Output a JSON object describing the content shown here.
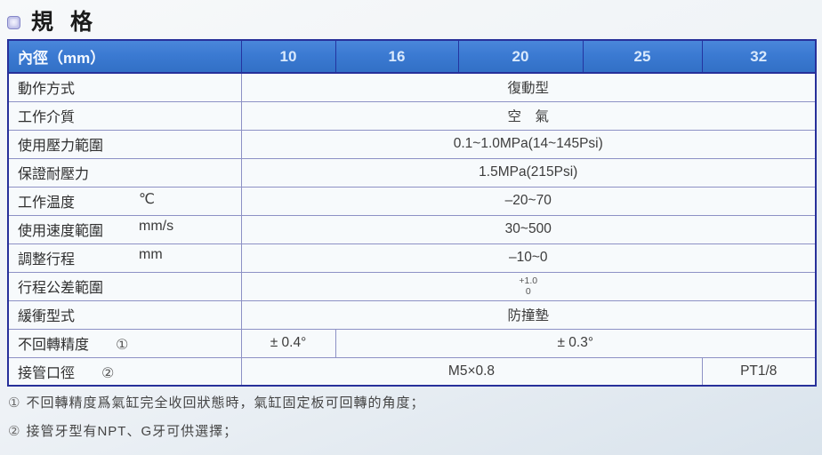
{
  "page": {
    "title": "規 格"
  },
  "table": {
    "header": {
      "label": "內徑（mm）",
      "columns": [
        "10",
        "16",
        "20",
        "25",
        "32"
      ]
    },
    "rows": [
      {
        "label": "動作方式",
        "cells": [
          {
            "text": "復動型",
            "span": 5
          }
        ]
      },
      {
        "label": "工作介質",
        "cells": [
          {
            "text": "空　氣",
            "span": 5
          }
        ]
      },
      {
        "label": "使用壓力範圍",
        "cells": [
          {
            "text": "0.1~1.0MPa(14~145Psi)",
            "span": 5
          }
        ]
      },
      {
        "label": "保證耐壓力",
        "cells": [
          {
            "text": "1.5MPa(215Psi)",
            "span": 5
          }
        ]
      },
      {
        "label": "工作温度",
        "unit": "℃",
        "cells": [
          {
            "text": "–20~70",
            "span": 5
          }
        ]
      },
      {
        "label": "使用速度範圍",
        "unit": "mm/s",
        "cells": [
          {
            "text": "30~500",
            "span": 5
          }
        ]
      },
      {
        "label": "調整行程",
        "unit": "mm",
        "cells": [
          {
            "text": "–10~0",
            "span": 5
          }
        ]
      },
      {
        "label": "行程公差範圍",
        "cells": [
          {
            "tolerance": {
              "upper": "+1.0",
              "lower": "0"
            },
            "span": 5
          }
        ]
      },
      {
        "label": "緩衝型式",
        "cells": [
          {
            "text": "防撞墊",
            "span": 5
          }
        ]
      },
      {
        "label": "不回轉精度",
        "marker": "①",
        "cells": [
          {
            "text": "± 0.4°",
            "span": 1
          },
          {
            "text": "± 0.3°",
            "span": 4
          }
        ]
      },
      {
        "label": "接管口徑",
        "marker": "②",
        "cells": [
          {
            "text": "M5×0.8",
            "span": 4
          },
          {
            "text": "PT1/8",
            "span": 1
          }
        ]
      }
    ]
  },
  "footnotes": [
    {
      "marker": "①",
      "text": "不回轉精度爲氣缸完全收回狀態時，氣缸固定板可回轉的角度；"
    },
    {
      "marker": "②",
      "text": "接管牙型有NPT、G牙可供選擇；"
    }
  ],
  "colors": {
    "header_bg": "#3b7ad2",
    "header_text": "#e9f2fd",
    "table_border": "#27309a",
    "grid_line": "#8d91c5",
    "cell_bg": "#f7fafc",
    "text_color": "#333333",
    "page_bg_top": "#f7f9fa",
    "page_bg_bottom": "#d9e3ec"
  }
}
